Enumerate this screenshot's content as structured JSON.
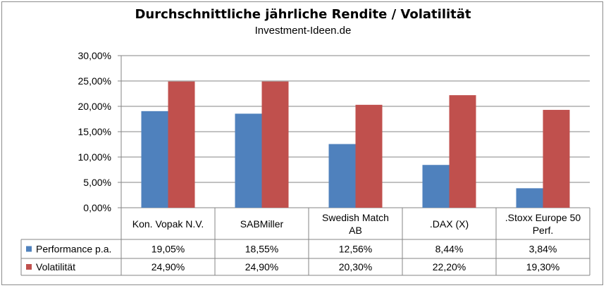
{
  "chart_data": {
    "type": "bar",
    "title": "Durchschnittliche jährliche Rendite / Volatilität",
    "subtitle": "Investment-Ideen.de",
    "categories": [
      "Kon. Vopak N.V.",
      "SABMiller",
      "Swedish Match AB",
      ".DAX (X)",
      ".Stoxx Europe 50 Perf."
    ],
    "category_lines": [
      [
        "Kon. Vopak N.V."
      ],
      [
        "SABMiller"
      ],
      [
        "Swedish Match",
        "AB"
      ],
      [
        ".DAX (X)"
      ],
      [
        ".Stoxx Europe 50",
        "Perf."
      ]
    ],
    "series": [
      {
        "name": "Performance p.a.",
        "color": "#4f81bd",
        "values": [
          19.05,
          18.55,
          12.56,
          8.44,
          3.84
        ],
        "labels": [
          "19,05%",
          "18,55%",
          "12,56%",
          "8,44%",
          "3,84%"
        ]
      },
      {
        "name": "Volatilität",
        "color": "#c0504d",
        "values": [
          24.9,
          24.9,
          20.3,
          22.2,
          19.3
        ],
        "labels": [
          "24,90%",
          "24,90%",
          "20,30%",
          "22,20%",
          "19,30%"
        ]
      }
    ],
    "ylim": [
      0,
      30
    ],
    "yticks": [
      {
        "value": 0,
        "label": "0,00%"
      },
      {
        "value": 5,
        "label": "5,00%"
      },
      {
        "value": 10,
        "label": "10,00%"
      },
      {
        "value": 15,
        "label": "15,00%"
      },
      {
        "value": 20,
        "label": "20,00%"
      },
      {
        "value": 25,
        "label": "25,00%"
      },
      {
        "value": 30,
        "label": "30,00%"
      }
    ],
    "grid": true,
    "legend": "data-table"
  }
}
